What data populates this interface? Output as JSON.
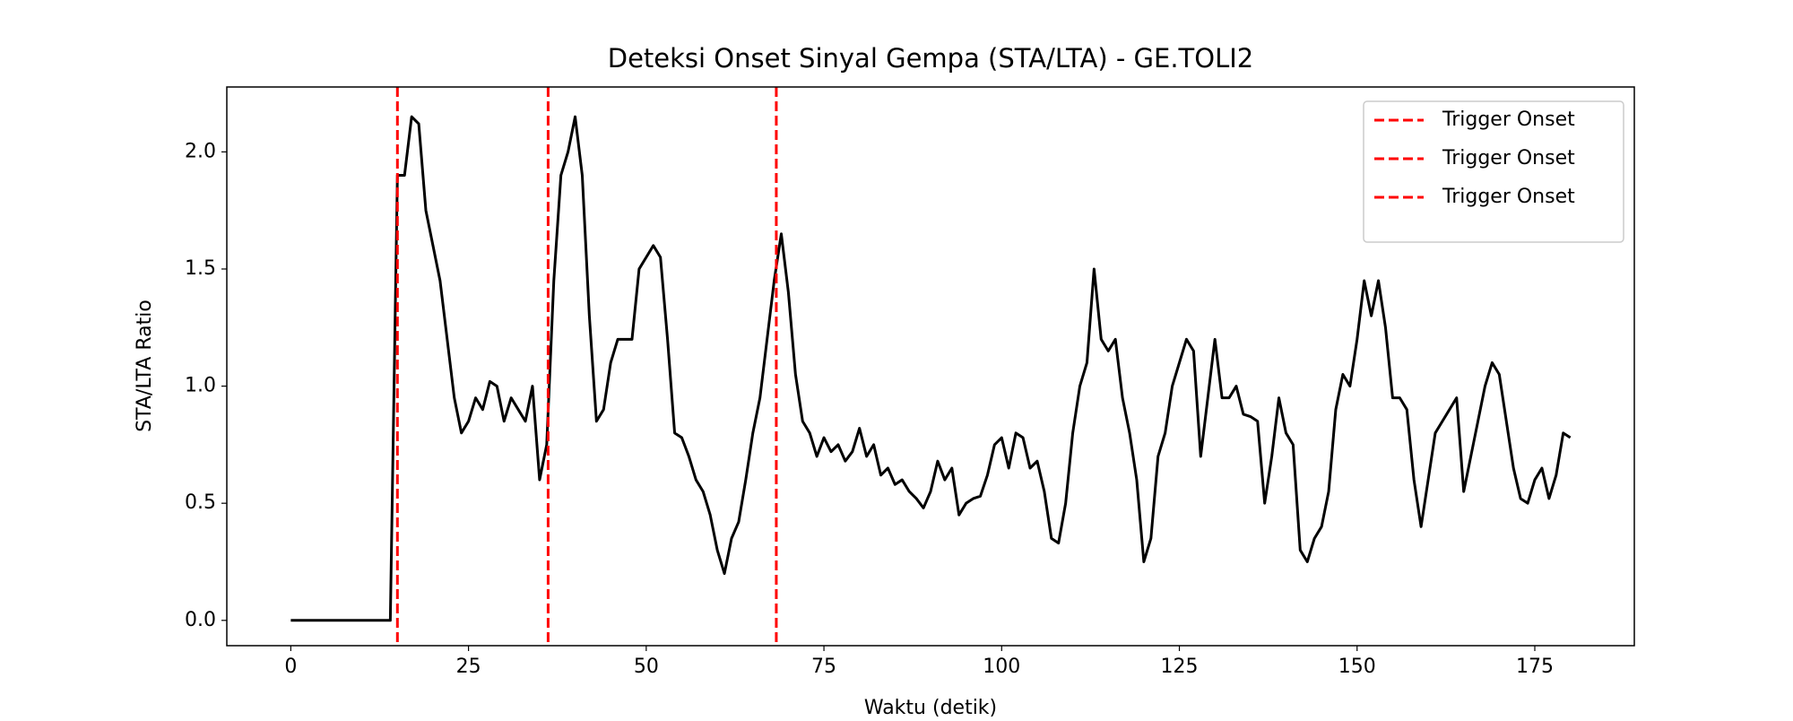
{
  "chart_data": {
    "type": "line",
    "title": "Deteksi Onset Sinyal Gempa (STA/LTA) - GE.TOLI2",
    "x_label": "Waktu (detik)",
    "y_label": "STA/LTA Ratio",
    "x": [
      0,
      1,
      2,
      3,
      4,
      5,
      6,
      7,
      8,
      9,
      10,
      11,
      12,
      13,
      14,
      15,
      16,
      17,
      18,
      19,
      20,
      21,
      22,
      23,
      24,
      25,
      26,
      27,
      28,
      29,
      30,
      31,
      32,
      33,
      34,
      35,
      36,
      37,
      38,
      39,
      40,
      41,
      42,
      43,
      44,
      45,
      46,
      47,
      48,
      49,
      50,
      51,
      52,
      53,
      54,
      55,
      56,
      57,
      58,
      59,
      60,
      61,
      62,
      63,
      64,
      65,
      66,
      67,
      68,
      69,
      70,
      71,
      72,
      73,
      74,
      75,
      76,
      77,
      78,
      79,
      80,
      81,
      82,
      83,
      84,
      85,
      86,
      87,
      88,
      89,
      90,
      91,
      92,
      93,
      94,
      95,
      96,
      97,
      98,
      99,
      100,
      101,
      102,
      103,
      104,
      105,
      106,
      107,
      108,
      109,
      110,
      111,
      112,
      113,
      114,
      115,
      116,
      117,
      118,
      119,
      120,
      121,
      122,
      123,
      124,
      125,
      126,
      127,
      128,
      129,
      130,
      131,
      132,
      133,
      134,
      135,
      136,
      137,
      138,
      139,
      140,
      141,
      142,
      143,
      144,
      145,
      146,
      147,
      148,
      149,
      150,
      151,
      152,
      153,
      154,
      155,
      156,
      157,
      158,
      159,
      160,
      161,
      162,
      163,
      164,
      165,
      166,
      167,
      168,
      169,
      170,
      171,
      172,
      173,
      174,
      175,
      176,
      177,
      178,
      179,
      180
    ],
    "series": [
      {
        "name": "STA/LTA",
        "color": "#000000",
        "values": [
          0,
          0,
          0,
          0,
          0,
          0,
          0,
          0,
          0,
          0,
          0,
          0,
          0,
          0,
          0,
          1.9,
          1.9,
          2.15,
          2.12,
          1.75,
          1.6,
          1.45,
          1.2,
          0.95,
          0.8,
          0.85,
          0.95,
          0.9,
          1.02,
          1.0,
          0.85,
          0.95,
          0.9,
          0.85,
          1.0,
          0.6,
          0.75,
          1.45,
          1.9,
          2.0,
          2.15,
          1.9,
          1.3,
          0.85,
          0.9,
          1.1,
          1.2,
          1.2,
          1.2,
          1.5,
          1.55,
          1.6,
          1.55,
          1.2,
          0.8,
          0.78,
          0.7,
          0.6,
          0.55,
          0.45,
          0.3,
          0.2,
          0.35,
          0.42,
          0.6,
          0.8,
          0.95,
          1.2,
          1.45,
          1.65,
          1.4,
          1.05,
          0.85,
          0.8,
          0.7,
          0.78,
          0.72,
          0.75,
          0.68,
          0.72,
          0.82,
          0.7,
          0.75,
          0.62,
          0.65,
          0.58,
          0.6,
          0.55,
          0.52,
          0.48,
          0.55,
          0.68,
          0.6,
          0.65,
          0.45,
          0.5,
          0.52,
          0.53,
          0.62,
          0.75,
          0.78,
          0.65,
          0.8,
          0.78,
          0.65,
          0.68,
          0.55,
          0.35,
          0.33,
          0.5,
          0.8,
          1.0,
          1.1,
          1.5,
          1.2,
          1.15,
          1.2,
          0.95,
          0.8,
          0.6,
          0.25,
          0.35,
          0.7,
          0.8,
          1.0,
          1.1,
          1.2,
          1.15,
          0.7,
          0.95,
          1.2,
          0.95,
          0.95,
          1.0,
          0.88,
          0.87,
          0.85,
          0.5,
          0.7,
          0.95,
          0.8,
          0.75,
          0.3,
          0.25,
          0.35,
          0.4,
          0.55,
          0.9,
          1.05,
          1.0,
          1.2,
          1.45,
          1.3,
          1.45,
          1.25,
          0.95,
          0.95,
          0.9,
          0.6,
          0.4,
          0.6,
          0.8,
          0.85,
          0.9,
          0.95,
          0.55,
          0.7,
          0.85,
          1.0,
          1.1,
          1.05,
          0.85,
          0.65,
          0.52,
          0.5,
          0.6,
          0.65,
          0.52,
          0.62,
          0.8,
          0.78
        ]
      }
    ],
    "vlines": [
      {
        "name": "Trigger Onset",
        "x": 15,
        "color": "#ff0000"
      },
      {
        "name": "Trigger Onset",
        "x": 36.2,
        "color": "#ff0000"
      },
      {
        "name": "Trigger Onset",
        "x": 68.3,
        "color": "#ff0000"
      }
    ],
    "xlim": [
      -9,
      189
    ],
    "ylim": [
      -0.108,
      2.277
    ],
    "xticks": [
      0,
      25,
      50,
      75,
      100,
      125,
      150,
      175
    ],
    "yticks": [
      {
        "value": 0,
        "label": "0.0"
      },
      0.5,
      {
        "value": 1,
        "label": "1.0"
      },
      1.5,
      {
        "value": 2,
        "label": "2.0"
      }
    ],
    "legend": "upper right"
  }
}
